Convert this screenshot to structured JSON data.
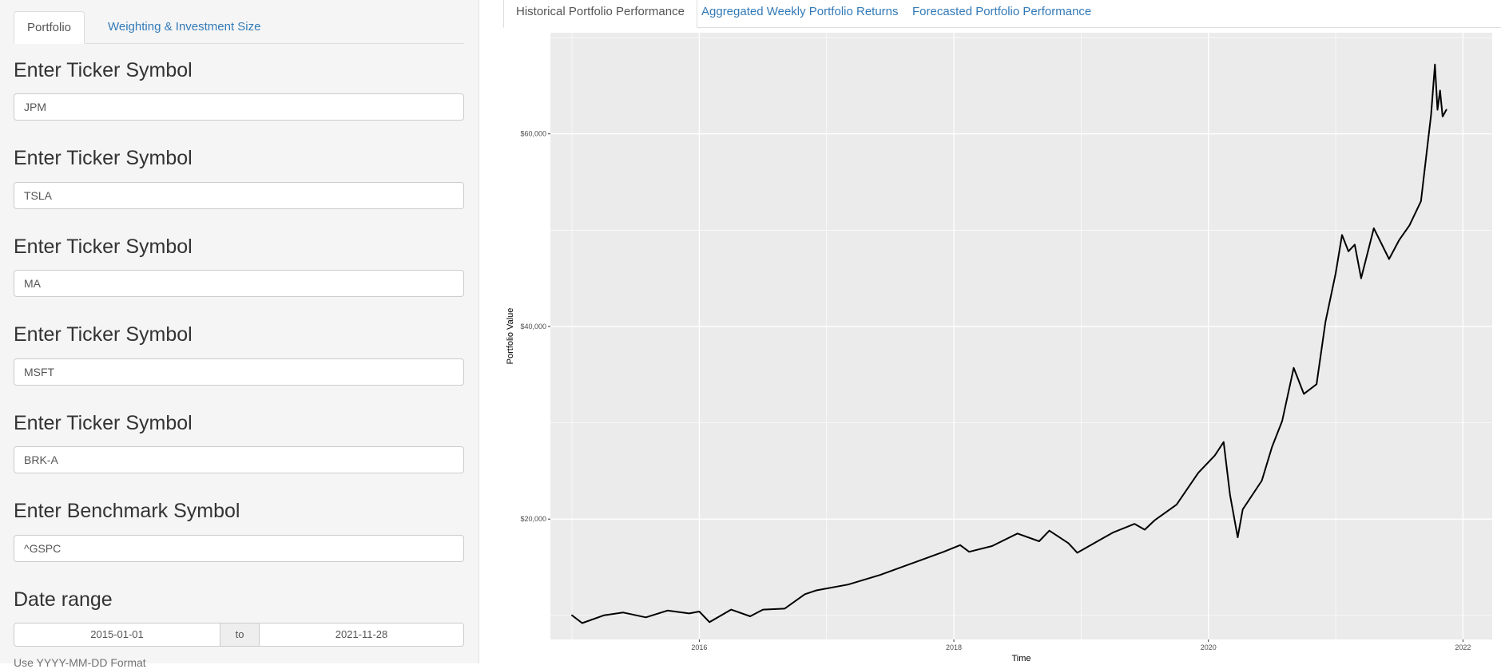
{
  "sidebar": {
    "tabs": [
      {
        "label": "Portfolio",
        "active": true
      },
      {
        "label": "Weighting & Investment Size",
        "active": false
      }
    ],
    "fields": [
      {
        "label": "Enter Ticker Symbol",
        "value": "JPM"
      },
      {
        "label": "Enter Ticker Symbol",
        "value": "TSLA"
      },
      {
        "label": "Enter Ticker Symbol",
        "value": "MA"
      },
      {
        "label": "Enter Ticker Symbol",
        "value": "MSFT"
      },
      {
        "label": "Enter Ticker Symbol",
        "value": "BRK-A"
      },
      {
        "label": "Enter Benchmark Symbol",
        "value": "^GSPC"
      }
    ],
    "date_range": {
      "label": "Date range",
      "start": "2015-01-01",
      "separator": "to",
      "end": "2021-11-28",
      "help": "Use YYYY-MM-DD Format"
    }
  },
  "main": {
    "tabs": [
      {
        "label": "Historical Portfolio Performance",
        "active": true
      },
      {
        "label": "Aggregated Weekly Portfolio Returns",
        "active": false
      },
      {
        "label": "Forecasted Portfolio Performance",
        "active": false
      }
    ]
  },
  "colors": {
    "panel_bg": "#ebebeb",
    "grid": "#ffffff",
    "line": "#000000",
    "link": "#337ab7"
  },
  "chart_data": {
    "type": "line",
    "xlabel": "Time",
    "ylabel": "Portfolio Value",
    "xlim": [
      2014.83,
      2022.23
    ],
    "ylim": [
      7500,
      70500
    ],
    "x_ticks": [
      2016,
      2018,
      2020,
      2022
    ],
    "x_tick_labels": [
      "2016",
      "2018",
      "2020",
      "2022"
    ],
    "y_ticks": [
      20000,
      40000,
      60000
    ],
    "y_tick_labels": [
      "$20,000",
      "$40,000",
      "$60,000"
    ],
    "grid": true,
    "legend": "none",
    "x": [
      2015.0,
      2015.08,
      2015.25,
      2015.4,
      2015.58,
      2015.75,
      2015.92,
      2016.0,
      2016.08,
      2016.25,
      2016.4,
      2016.5,
      2016.67,
      2016.83,
      2016.92,
      2017.17,
      2017.42,
      2017.67,
      2017.92,
      2018.05,
      2018.12,
      2018.3,
      2018.5,
      2018.67,
      2018.75,
      2018.9,
      2018.97,
      2019.17,
      2019.25,
      2019.42,
      2019.5,
      2019.58,
      2019.75,
      2019.92,
      2020.05,
      2020.12,
      2020.17,
      2020.23,
      2020.27,
      2020.42,
      2020.5,
      2020.58,
      2020.67,
      2020.75,
      2020.85,
      2020.92,
      2021.0,
      2021.05,
      2021.1,
      2021.15,
      2021.2,
      2021.3,
      2021.42,
      2021.5,
      2021.58,
      2021.67,
      2021.75,
      2021.78,
      2021.8,
      2021.82,
      2021.84,
      2021.87
    ],
    "y": [
      10000,
      9200,
      10000,
      10300,
      9800,
      10500,
      10200,
      10400,
      9300,
      10600,
      9900,
      10600,
      10700,
      12200,
      12600,
      13200,
      14200,
      15400,
      16600,
      17300,
      16600,
      17200,
      18500,
      17700,
      18800,
      17500,
      16500,
      18000,
      18600,
      19500,
      18900,
      19900,
      21500,
      24800,
      26600,
      28000,
      22500,
      18100,
      21000,
      24000,
      27500,
      30200,
      35700,
      33000,
      34000,
      40500,
      45500,
      49500,
      47800,
      48500,
      45000,
      50200,
      47000,
      49000,
      50500,
      53000,
      62000,
      67200,
      62500,
      64500,
      61800,
      62500
    ]
  }
}
